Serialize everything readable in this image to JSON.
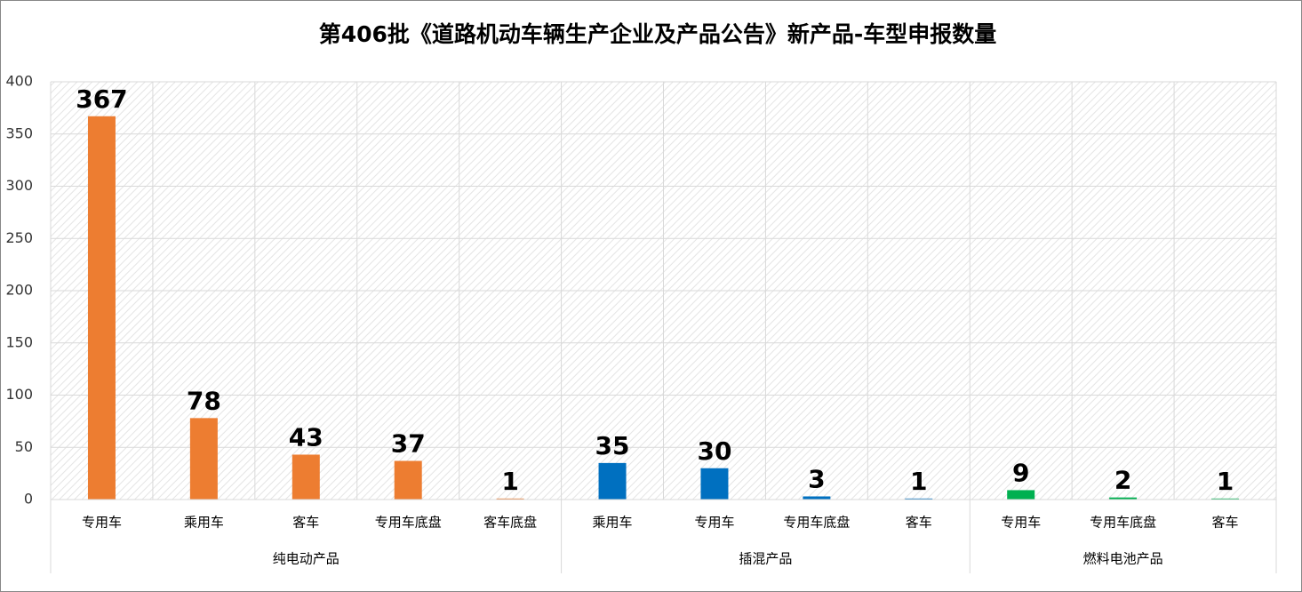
{
  "chart_data": {
    "type": "bar",
    "title": "第406批《道路机动车辆生产企业及产品公告》新产品-车型申报数量",
    "ylim": [
      0,
      400
    ],
    "yticks": [
      0,
      50,
      100,
      150,
      200,
      250,
      300,
      350,
      400
    ],
    "grid": true,
    "groups": [
      {
        "name": "纯电动产品",
        "color": "#ed7d31",
        "categories": [
          "专用车",
          "乘用车",
          "客车",
          "专用车底盘",
          "客车底盘"
        ],
        "values": [
          367,
          78,
          43,
          37,
          1
        ]
      },
      {
        "name": "插混产品",
        "color": "#0070c0",
        "categories": [
          "乘用车",
          "专用车",
          "专用车底盘",
          "客车"
        ],
        "values": [
          35,
          30,
          3,
          1
        ]
      },
      {
        "name": "燃料电池产品",
        "color": "#00b050",
        "categories": [
          "专用车",
          "专用车底盘",
          "客车"
        ],
        "values": [
          9,
          2,
          1
        ]
      }
    ]
  }
}
